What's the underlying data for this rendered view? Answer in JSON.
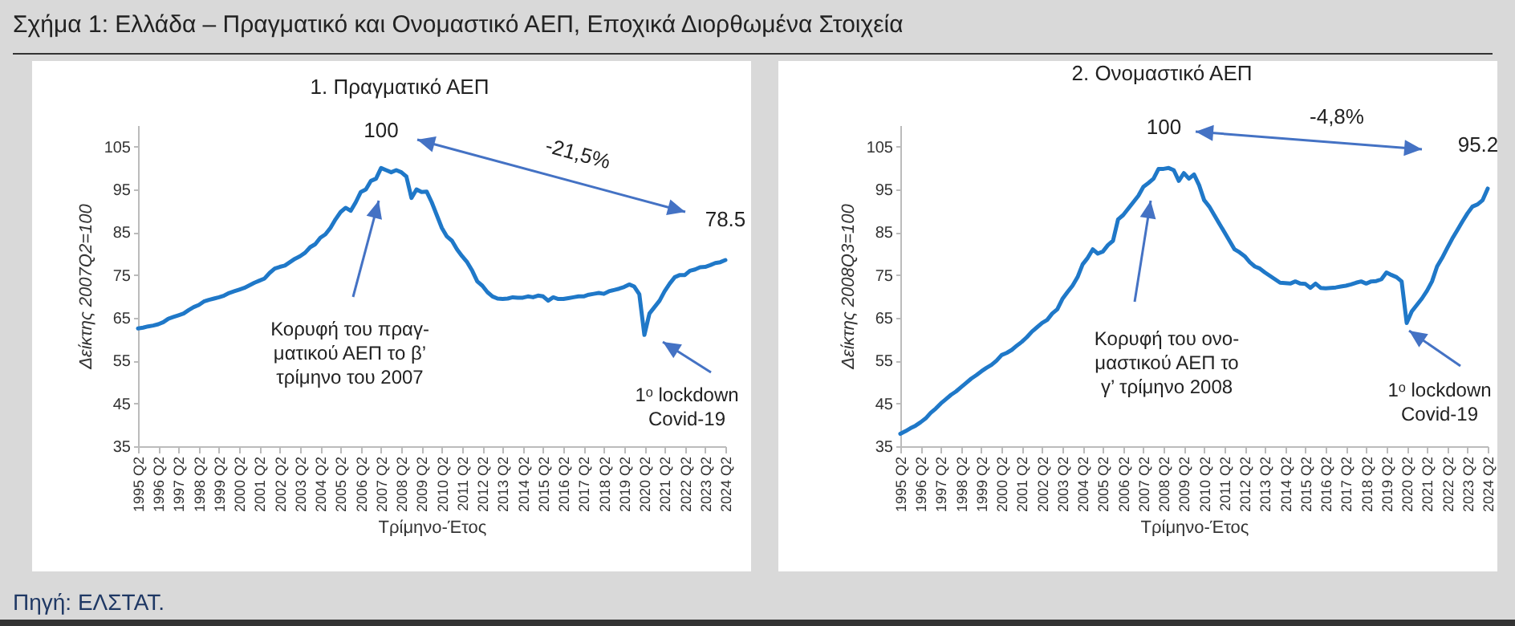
{
  "chart_data": [
    {
      "type": "line",
      "title": "1. Πραγματικό ΑΕΠ",
      "xlabel": "Τρίμηνο-Έτος",
      "ylabel": "Δείκτης 2007Q2=100",
      "categories": [
        "1995 Q2",
        null,
        null,
        null,
        "1996 Q2",
        null,
        null,
        null,
        "1997 Q2",
        null,
        null,
        null,
        "1998 Q2",
        null,
        null,
        null,
        "1999 Q2",
        null,
        null,
        null,
        "2000 Q2",
        null,
        null,
        null,
        "2001 Q2",
        null,
        null,
        null,
        "2002 Q2",
        null,
        null,
        null,
        "2003 Q2",
        null,
        null,
        null,
        "2004 Q2",
        null,
        null,
        null,
        "2005 Q2",
        null,
        null,
        null,
        "2006 Q2",
        null,
        null,
        null,
        "2007 Q2",
        null,
        null,
        null,
        "2008 Q2",
        null,
        null,
        null,
        "2009 Q2",
        null,
        null,
        null,
        "2010 Q2",
        null,
        null,
        null,
        "2011 Q2",
        null,
        null,
        null,
        "2012 Q2",
        null,
        null,
        null,
        "2013 Q2",
        null,
        null,
        null,
        "2014 Q2",
        null,
        null,
        null,
        "2015 Q2",
        null,
        null,
        null,
        "2016 Q2",
        null,
        null,
        null,
        "2017 Q2",
        null,
        null,
        null,
        "2018 Q2",
        null,
        null,
        null,
        "2019 Q2",
        null,
        null,
        null,
        "2020 Q2",
        null,
        null,
        null,
        "2021 Q2",
        null,
        null,
        null,
        "2022 Q2",
        null,
        null,
        null,
        "2023 Q2",
        null,
        null,
        null,
        "2024 Q2"
      ],
      "series": [
        {
          "color": "#1f78c8",
          "values": [
            62.5,
            62.7,
            63.0,
            63.2,
            63.5,
            64.0,
            64.8,
            65.2,
            65.6,
            66.0,
            66.8,
            67.5,
            68.0,
            68.8,
            69.2,
            69.5,
            69.8,
            70.2,
            70.8,
            71.2,
            71.6,
            72.0,
            72.6,
            73.2,
            73.7,
            74.2,
            75.5,
            76.5,
            76.9,
            77.2,
            78.0,
            78.8,
            79.4,
            80.2,
            81.5,
            82.2,
            83.7,
            84.5,
            86.0,
            88.0,
            89.7,
            90.7,
            90.0,
            92.0,
            94.4,
            95.0,
            97.0,
            97.5,
            100,
            99.5,
            99.0,
            99.5,
            99.0,
            98.0,
            93.0,
            95.0,
            94.4,
            94.5,
            92.0,
            89.0,
            86.0,
            84.0,
            83.0,
            81.0,
            79.4,
            78.0,
            76.0,
            73.5,
            72.5,
            71.0,
            70.0,
            69.5,
            69.4,
            69.5,
            69.8,
            69.7,
            69.7,
            70.0,
            69.8,
            70.2,
            70.0,
            69.0,
            69.8,
            69.4,
            69.4,
            69.6,
            69.8,
            70.0,
            70.0,
            70.4,
            70.6,
            70.8,
            70.6,
            71.2,
            71.5,
            71.8,
            72.2,
            72.8,
            72.3,
            70.5,
            61.0,
            66.0,
            67.5,
            69.0,
            71.2,
            73.0,
            74.5,
            75.0,
            75.0,
            76.0,
            76.3,
            76.8,
            76.9,
            77.3,
            77.8,
            78.0,
            78.5
          ]
        }
      ],
      "ylim": [
        35,
        110
      ],
      "yticks": [
        35,
        45,
        55,
        65,
        75,
        85,
        95,
        105
      ],
      "line_style": "solid",
      "annotations": [
        "Σχήμα 1: Ελλάδα – Πραγματικό και Ονομαστικό ΑΕΠ, Εποχικά Διορθωμένα Στοιχεία",
        {
          "text": "100",
          "x": "2007 Q2",
          "y": 100
        },
        {
          "text": "78.5",
          "x": "2024 Q2",
          "y": 78.5
        },
        "-21,5%",
        "Κορυφή του πραγ-\nματικού ΑΕΠ το β’\nτρίμηνο του 2007",
        "1ᵒ lockdown\nCovid-19",
        "Πηγή: ΕΛΣΤΑΤ."
      ]
    },
    {
      "type": "line",
      "title": "2. Ονομαστικό ΑΕΠ",
      "xlabel": "Τρίμηνο-Έτος",
      "ylabel": "Δείκτης 2008Q3=100",
      "categories": [
        "1995 Q2",
        null,
        null,
        null,
        "1996 Q2",
        null,
        null,
        null,
        "1997 Q2",
        null,
        null,
        null,
        "1998 Q2",
        null,
        null,
        null,
        "1999 Q2",
        null,
        null,
        null,
        "2000 Q2",
        null,
        null,
        null,
        "2001 Q2",
        null,
        null,
        null,
        "2002 Q2",
        null,
        null,
        null,
        "2003 Q2",
        null,
        null,
        null,
        "2004 Q2",
        null,
        null,
        null,
        "2005 Q2",
        null,
        null,
        null,
        "2006 Q2",
        null,
        null,
        null,
        "2007 Q2",
        null,
        null,
        null,
        "2008 Q2",
        null,
        null,
        null,
        "2009 Q2",
        null,
        null,
        null,
        "2010 Q2",
        null,
        null,
        null,
        "2011 Q2",
        null,
        null,
        null,
        "2012 Q2",
        null,
        null,
        null,
        "2013 Q2",
        null,
        null,
        null,
        "2014 Q2",
        null,
        null,
        null,
        "2015 Q2",
        null,
        null,
        null,
        "2016 Q2",
        null,
        null,
        null,
        "2017 Q2",
        null,
        null,
        null,
        "2018 Q2",
        null,
        null,
        null,
        "2019 Q2",
        null,
        null,
        null,
        "2020 Q2",
        null,
        null,
        null,
        "2021 Q2",
        null,
        null,
        null,
        "2022 Q2",
        null,
        null,
        null,
        "2023 Q2",
        null,
        null,
        null,
        "2024 Q2"
      ],
      "series": [
        {
          "color": "#1f78c8",
          "values": [
            37.9,
            38.5,
            39.2,
            39.8,
            40.6,
            41.5,
            42.8,
            43.8,
            45.0,
            46.0,
            47.0,
            47.8,
            48.8,
            49.8,
            50.8,
            51.6,
            52.5,
            53.3,
            54.0,
            55.0,
            56.3,
            56.8,
            57.5,
            58.5,
            59.4,
            60.5,
            61.8,
            62.8,
            63.8,
            64.5,
            66.0,
            67.0,
            69.4,
            71.0,
            72.5,
            74.5,
            77.5,
            79.0,
            81.0,
            80.0,
            80.5,
            82.0,
            83.0,
            88.0,
            89.0,
            90.5,
            92.0,
            93.5,
            95.6,
            96.5,
            97.5,
            99.8,
            99.8,
            100,
            99.5,
            97.0,
            98.8,
            97.5,
            98.5,
            96.0,
            92.5,
            91.0,
            89.0,
            87.0,
            85.0,
            83.0,
            81.0,
            80.3,
            79.4,
            78.0,
            77.0,
            76.5,
            75.6,
            74.8,
            74.0,
            73.2,
            73.1,
            73.0,
            73.5,
            73.0,
            72.9,
            72.0,
            73.0,
            72.0,
            71.9,
            72.0,
            72.1,
            72.3,
            72.5,
            72.8,
            73.2,
            73.5,
            73.0,
            73.5,
            73.6,
            74.0,
            75.6,
            75.0,
            74.5,
            73.5,
            63.8,
            66.5,
            68.0,
            69.5,
            71.3,
            73.5,
            77.0,
            79.0,
            81.3,
            83.5,
            85.5,
            87.5,
            89.4,
            91.0,
            91.5,
            92.5,
            95.2
          ]
        }
      ],
      "ylim": [
        35,
        110
      ],
      "yticks": [
        35,
        45,
        55,
        65,
        75,
        85,
        95,
        105
      ],
      "line_style": "solid",
      "annotations": [
        {
          "text": "100",
          "y": 100
        },
        {
          "text": "95.2",
          "x": "2024 Q2",
          "y": 95.2
        },
        "-4,8%",
        "Κορυφή του ονο-\nμαστικού ΑΕΠ το\nγ’ τρίμηνο 2008",
        "1ᵒ lockdown\nCovid-19"
      ]
    }
  ]
}
